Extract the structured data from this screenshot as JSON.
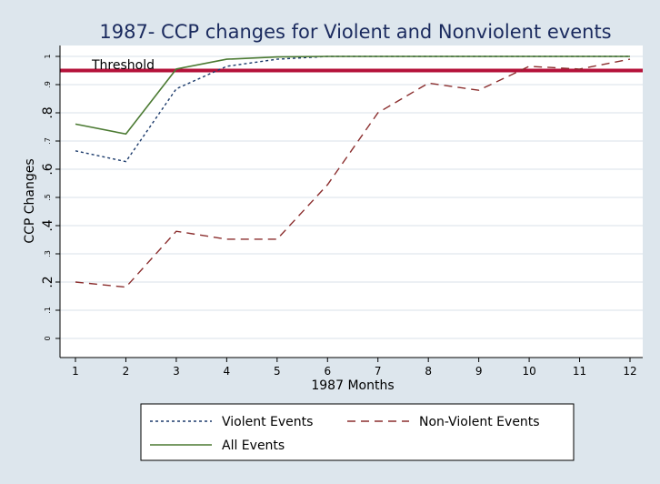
{
  "chart_data": {
    "type": "line",
    "title": "1987- CCP changes for Violent and Nonviolent events",
    "xlabel": "1987 Months",
    "ylabel": "CCP Changes",
    "x": [
      1,
      2,
      3,
      4,
      5,
      6,
      7,
      8,
      9,
      10,
      11,
      12
    ],
    "xlim": [
      1,
      12
    ],
    "ylim": [
      0,
      1
    ],
    "x_ticks": [
      "1",
      "2",
      "3",
      "4",
      "5",
      "6",
      "7",
      "8",
      "9",
      "10",
      "11",
      "12"
    ],
    "y_ticks": [
      {
        "value": 0,
        "label": "0"
      },
      {
        "value": 0.1,
        "label": ".1"
      },
      {
        "value": 0.2,
        "label": ".2"
      },
      {
        "value": 0.3,
        "label": ".3"
      },
      {
        "value": 0.4,
        "label": ".4"
      },
      {
        "value": 0.5,
        "label": ".5"
      },
      {
        "value": 0.6,
        "label": ".6"
      },
      {
        "value": 0.7,
        "label": ".7"
      },
      {
        "value": 0.8,
        "label": ".8"
      },
      {
        "value": 0.9,
        "label": ".9"
      },
      {
        "value": 1,
        "label": "1"
      }
    ],
    "grid": true,
    "legend_position": "bottom",
    "threshold": {
      "value": 0.95,
      "label": "Threshold",
      "color": "#b5123a"
    },
    "series": [
      {
        "name": "Violent Events",
        "style": "dotted",
        "color": "#1b3a6b",
        "values": [
          0.665,
          0.627,
          0.885,
          0.965,
          0.99,
          1.0,
          1.0,
          1.0,
          1.0,
          1.0,
          1.0,
          1.0
        ]
      },
      {
        "name": "Non-Violent Events",
        "style": "dashed",
        "color": "#8b2e2e",
        "values": [
          0.2,
          0.182,
          0.38,
          0.352,
          0.352,
          0.545,
          0.8,
          0.905,
          0.88,
          0.965,
          0.955,
          0.99
        ]
      },
      {
        "name": "All Events",
        "style": "solid",
        "color": "#4b7a32",
        "values": [
          0.76,
          0.725,
          0.955,
          0.99,
          0.998,
          1.0,
          1.0,
          1.0,
          1.0,
          1.0,
          1.0,
          1.0
        ]
      }
    ]
  }
}
